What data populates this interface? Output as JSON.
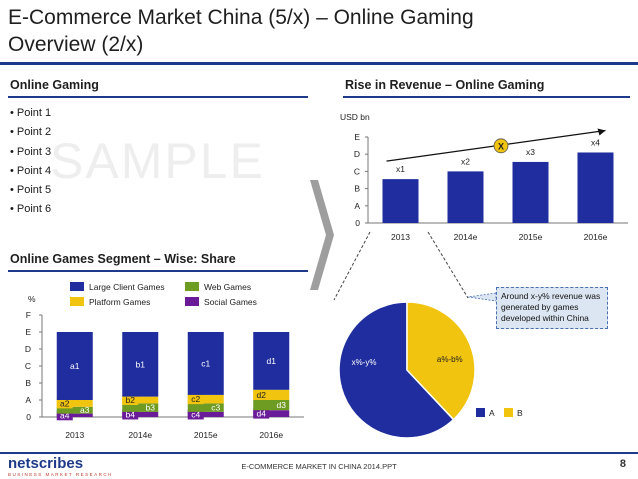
{
  "slide": {
    "title_line1": "E-Commerce Market China (5/x) – Online Gaming",
    "title_line2": "Overview (2/x)",
    "watermark": "SAMPLE",
    "footer": "E-COMMERCE MARKET IN CHINA 2014.PPT",
    "page_number": "8",
    "logo": {
      "name": "netscribes",
      "tagline": "BUSINESS MARKET RESEARCH"
    }
  },
  "online_gaming": {
    "heading": "Online Gaming",
    "points": [
      "Point 1",
      "Point 2",
      "Point 3",
      "Point 4",
      "Point 5",
      "Point 6"
    ]
  },
  "colors": {
    "navy": "#1e3a8a",
    "blue": "#1f2d9f",
    "gold": "#f1c40f",
    "green": "#6e9b22",
    "purple": "#6a1b9a",
    "arrow_gray": "#9e9e9e"
  },
  "chart_data": [
    {
      "type": "bar",
      "title": "Rise in Revenue – Online Gaming",
      "ylabel": "USD bn",
      "categories": [
        "2013",
        "2014e",
        "2015e",
        "2016e"
      ],
      "y_ticks": [
        "0",
        "A",
        "B",
        "C",
        "D",
        "E"
      ],
      "values": [
        2.55,
        3.0,
        3.55,
        4.1
      ],
      "data_labels": [
        "x1",
        "x2",
        "x3",
        "x4"
      ],
      "trend_marker": "X",
      "ylim": [
        0,
        5
      ]
    },
    {
      "type": "bar",
      "title": "Online Games Segment – Wise: Share",
      "ylabel": "%",
      "categories": [
        "2013",
        "2014e",
        "2015e",
        "2016e"
      ],
      "y_ticks": [
        "0",
        "A",
        "B",
        "C",
        "D",
        "E",
        "F"
      ],
      "ylim": [
        0,
        6
      ],
      "legend": [
        "Large Client Games",
        "Web Games",
        "Platform Games",
        "Social Games"
      ],
      "stacks": [
        {
          "segments": [
            {
              "series": "Social Games",
              "value": 0.2,
              "label": "a4"
            },
            {
              "series": "Web Games",
              "value": 0.4,
              "label": "a3"
            },
            {
              "series": "Platform Games",
              "value": 0.4,
              "label": "a2"
            },
            {
              "series": "Large Client Games",
              "value": 4.0,
              "label": "a1"
            }
          ]
        },
        {
          "segments": [
            {
              "series": "Social Games",
              "value": 0.3,
              "label": "b4"
            },
            {
              "series": "Web Games",
              "value": 0.5,
              "label": "b3"
            },
            {
              "series": "Platform Games",
              "value": 0.4,
              "label": "b2"
            },
            {
              "series": "Large Client Games",
              "value": 3.8,
              "label": "b1"
            }
          ]
        },
        {
          "segments": [
            {
              "series": "Social Games",
              "value": 0.3,
              "label": "c4"
            },
            {
              "series": "Web Games",
              "value": 0.5,
              "label": "c3"
            },
            {
              "series": "Platform Games",
              "value": 0.5,
              "label": "c2"
            },
            {
              "series": "Large Client Games",
              "value": 3.7,
              "label": "c1"
            }
          ]
        },
        {
          "segments": [
            {
              "series": "Social Games",
              "value": 0.4,
              "label": "d4"
            },
            {
              "series": "Web Games",
              "value": 0.6,
              "label": "d3"
            },
            {
              "series": "Platform Games",
              "value": 0.6,
              "label": "d2"
            },
            {
              "series": "Large Client Games",
              "value": 3.4,
              "label": "d1"
            }
          ]
        }
      ]
    },
    {
      "type": "pie",
      "categories": [
        "A",
        "B"
      ],
      "values": [
        62,
        38
      ],
      "slice_labels": [
        "x%-y%",
        "a%-b%"
      ],
      "callout": "Around x-y% revenue was generated by games developed within China"
    }
  ]
}
